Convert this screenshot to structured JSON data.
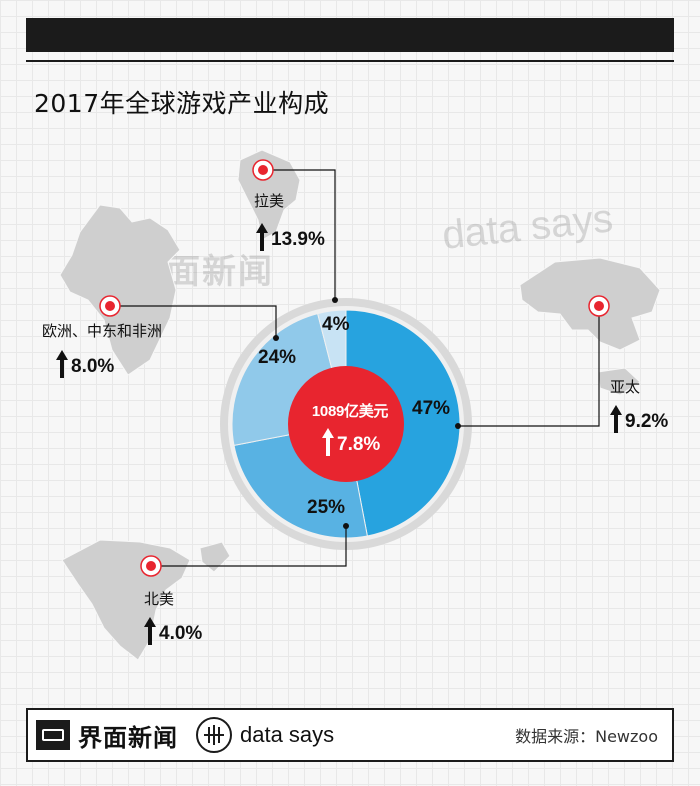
{
  "title": "2017年全球游戏产业构成",
  "watermark": {
    "jiemian": "界面新闻",
    "datasays": "data says"
  },
  "center": {
    "total": "1089亿美元",
    "growth": "7.8%"
  },
  "regions": {
    "latam": {
      "label": "拉美",
      "growth": "13.9%"
    },
    "emea": {
      "label": "欧洲、中东和非洲",
      "growth": "8.0%"
    },
    "apac": {
      "label": "亚太",
      "growth": "9.2%"
    },
    "na": {
      "label": "北美",
      "growth": "4.0%"
    }
  },
  "chart_data": {
    "type": "pie",
    "title": "2017年全球游戏产业构成",
    "total": "1089亿美元",
    "total_growth": "7.8%",
    "slices": [
      {
        "label": "亚太",
        "value": 47,
        "value_label": "47%",
        "growth": "9.2%",
        "color": "#27a3df"
      },
      {
        "label": "北美",
        "value": 25,
        "value_label": "25%",
        "growth": "4.0%",
        "color": "#58b2e3"
      },
      {
        "label": "欧洲、中东和非洲",
        "value": 24,
        "value_label": "24%",
        "growth": "8.0%",
        "color": "#90c9ea"
      },
      {
        "label": "拉美",
        "value": 4,
        "value_label": "4%",
        "growth": "13.9%",
        "color": "#c8e3f4"
      }
    ]
  },
  "colors": {
    "center_red": "#e8252f",
    "ring_gray": "#d9d9d9",
    "marker_red": "#e8252f",
    "map_gray": "#cfcfcf"
  },
  "footer": {
    "brand_cn": "界面新闻",
    "brand_en": "data says",
    "source": "数据来源：Newzoo"
  }
}
